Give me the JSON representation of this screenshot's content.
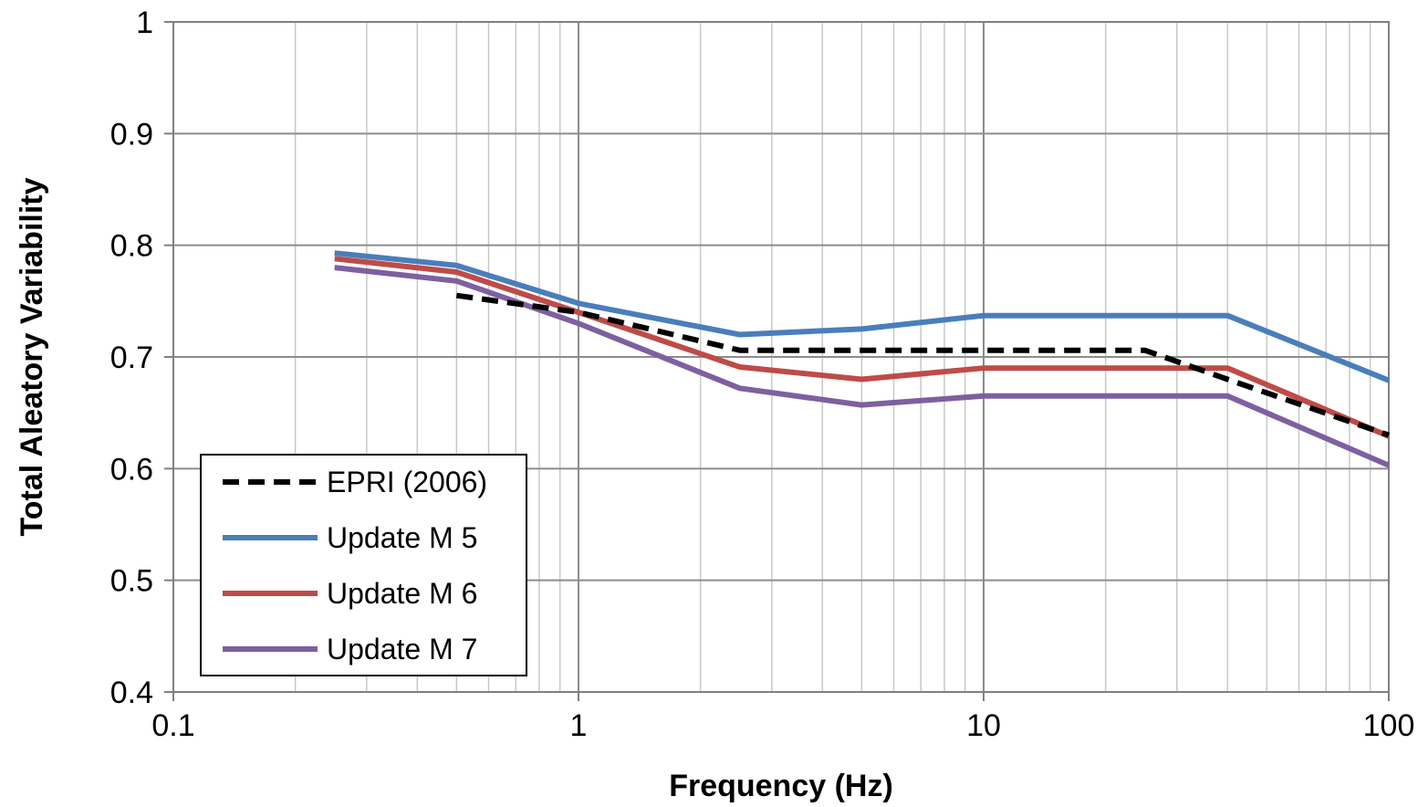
{
  "chart_data": {
    "type": "line",
    "title": "",
    "xlabel": "Frequency (Hz)",
    "ylabel": "Total Aleatory Variability",
    "xscale": "log",
    "xlim": [
      0.1,
      100
    ],
    "ylim": [
      0.4,
      1.0
    ],
    "x_tick_labels": [
      "0.1",
      "1",
      "10",
      "100"
    ],
    "y_tick_labels": [
      "0.4",
      "0.5",
      "0.6",
      "0.7",
      "0.8",
      "0.9",
      "1"
    ],
    "grid": true,
    "legend_position": "bottom-left",
    "series": [
      {
        "name": "EPRI (2006)",
        "color": "#000000",
        "style": "dashed",
        "x": [
          0.5,
          1,
          2.5,
          5,
          10,
          25,
          40,
          100
        ],
        "y": [
          0.755,
          0.74,
          0.706,
          0.706,
          0.706,
          0.706,
          0.68,
          0.63
        ]
      },
      {
        "name": "Update M 5",
        "color": "#4a7ebb",
        "style": "solid",
        "x": [
          0.25,
          0.5,
          1,
          2.5,
          5,
          10,
          25,
          40,
          100
        ],
        "y": [
          0.793,
          0.782,
          0.748,
          0.72,
          0.725,
          0.737,
          0.737,
          0.737,
          0.679
        ]
      },
      {
        "name": "Update M 6",
        "color": "#be4b48",
        "style": "solid",
        "x": [
          0.25,
          0.5,
          1,
          2.5,
          5,
          10,
          25,
          40,
          100
        ],
        "y": [
          0.788,
          0.776,
          0.74,
          0.691,
          0.68,
          0.69,
          0.69,
          0.69,
          0.629
        ]
      },
      {
        "name": "Update M 7",
        "color": "#7d60a0",
        "style": "solid",
        "x": [
          0.25,
          0.5,
          1,
          2.5,
          5,
          10,
          25,
          40,
          100
        ],
        "y": [
          0.78,
          0.768,
          0.73,
          0.672,
          0.657,
          0.665,
          0.665,
          0.665,
          0.603
        ]
      }
    ]
  }
}
